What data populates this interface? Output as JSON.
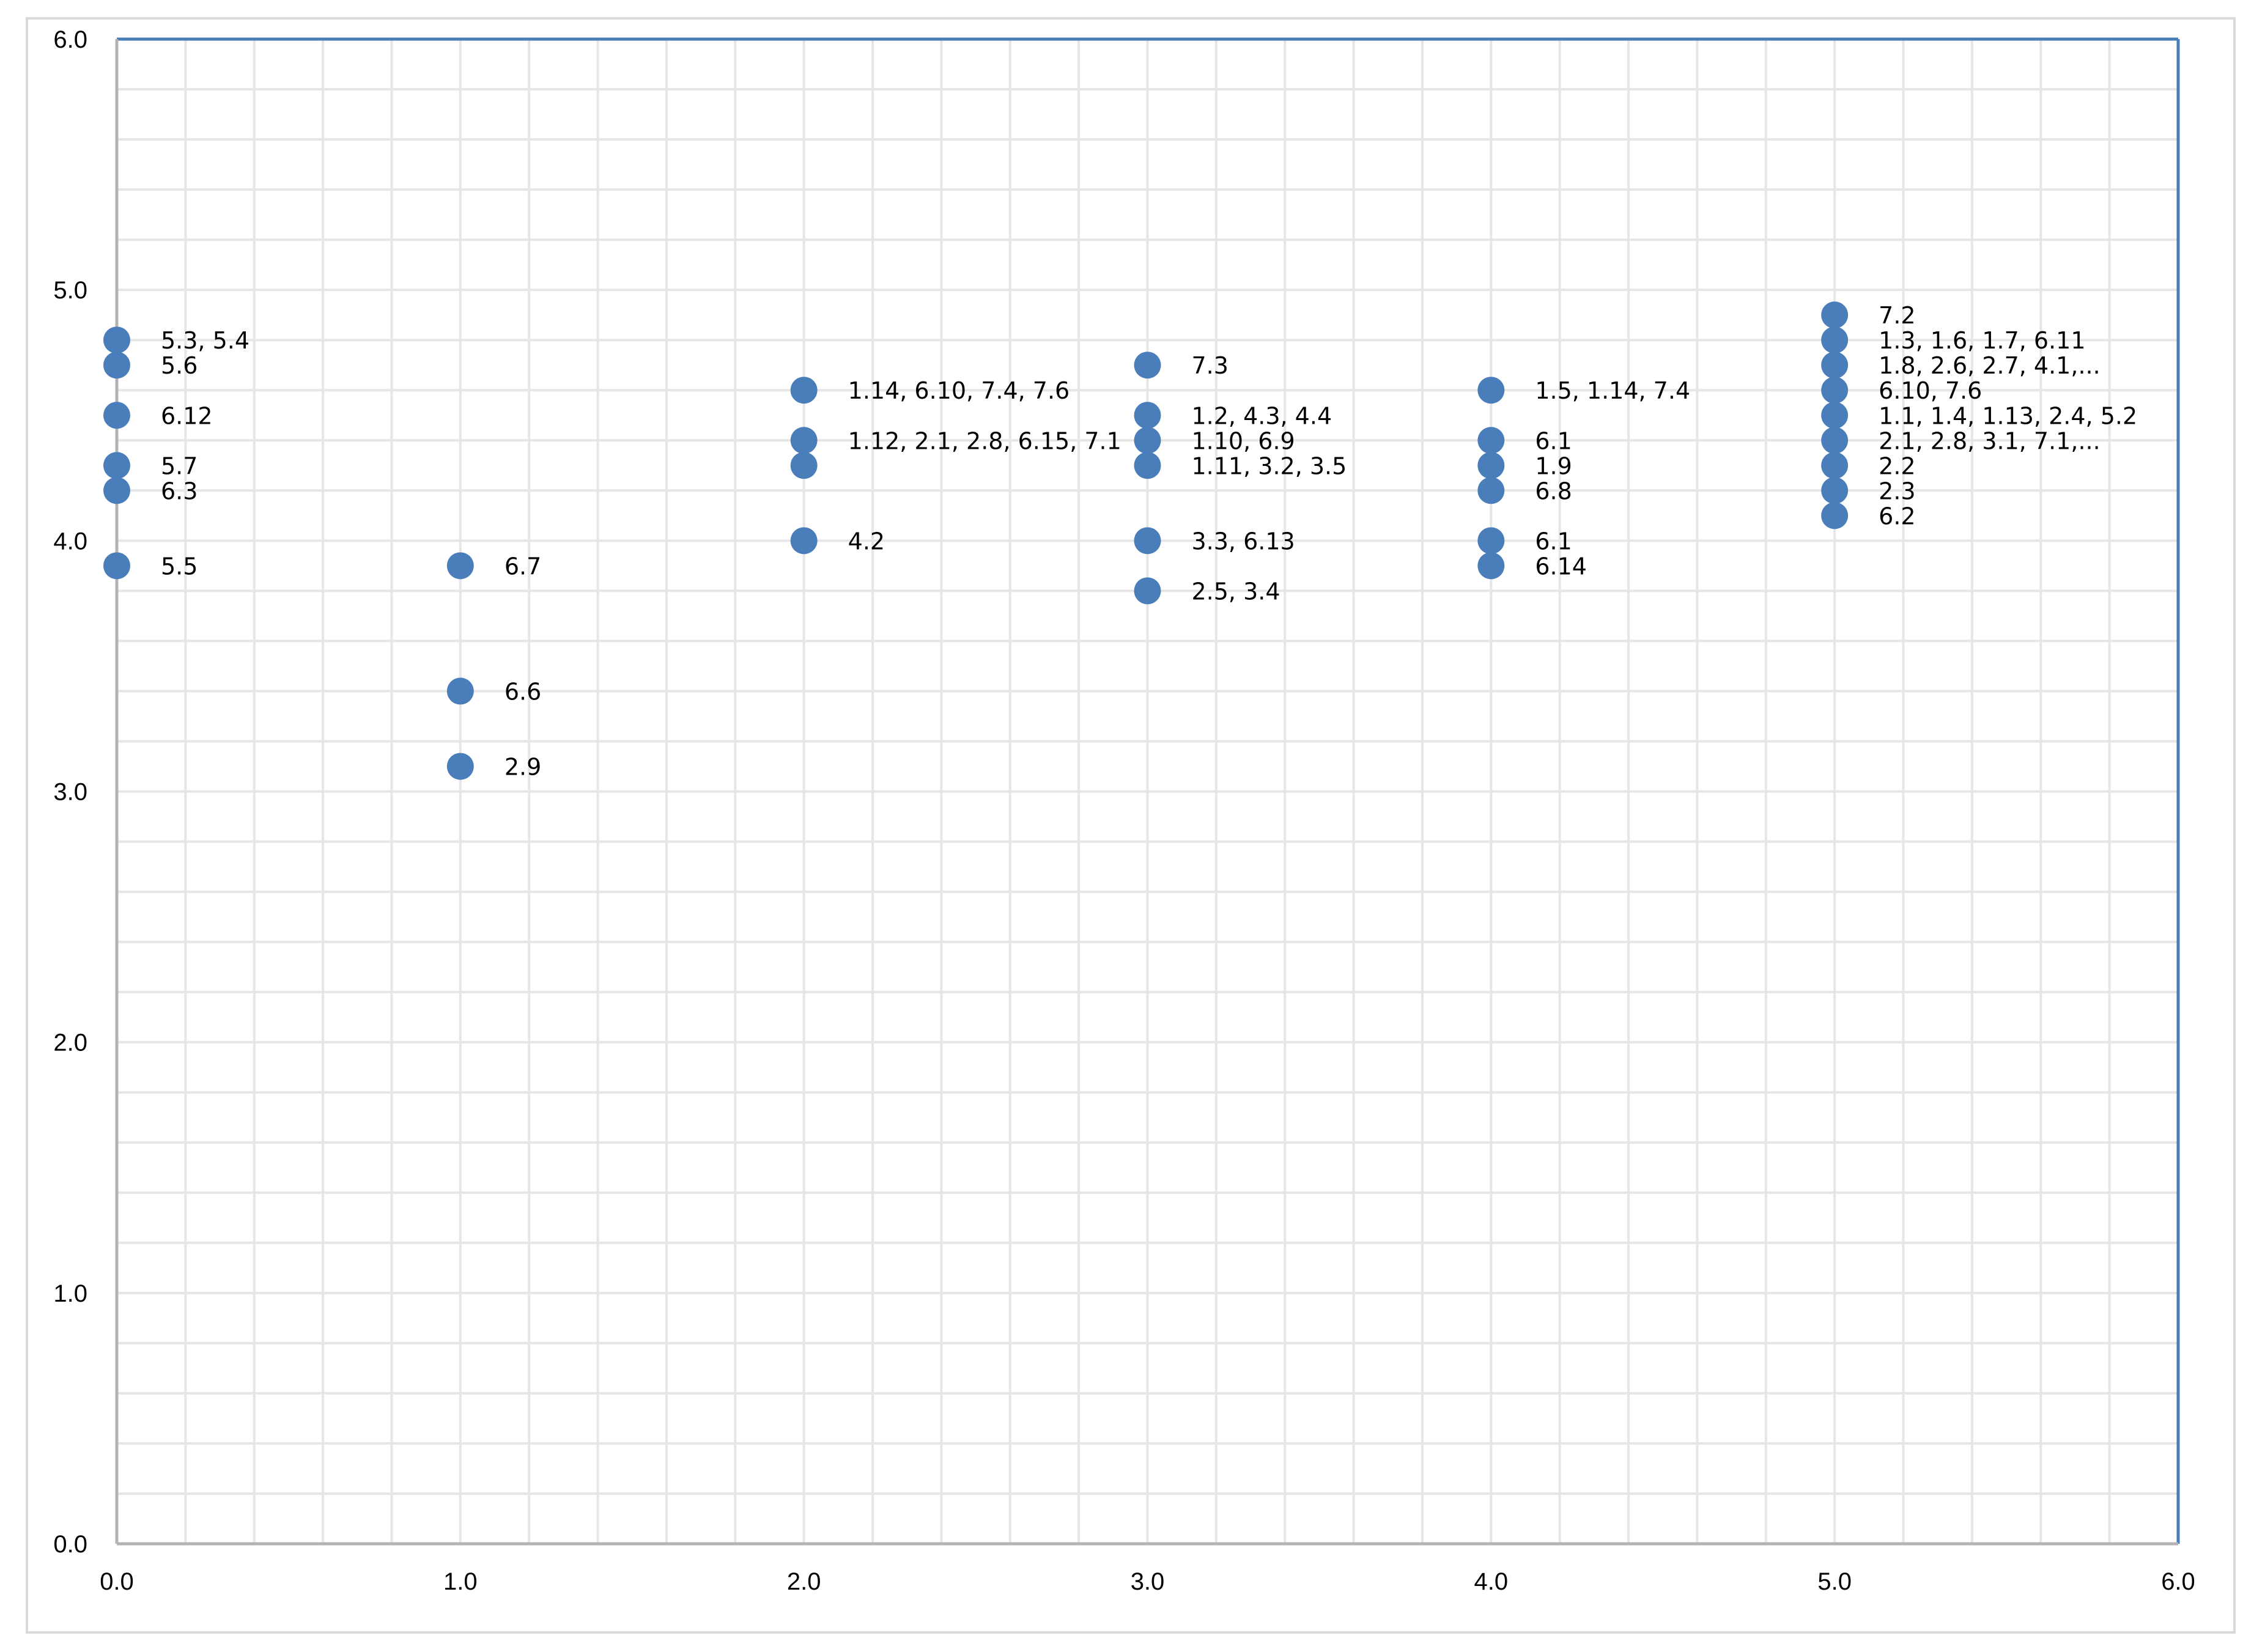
{
  "chart_data": {
    "type": "scatter",
    "title": "",
    "xlabel": "",
    "ylabel": "",
    "xlim": [
      0,
      6
    ],
    "ylim": [
      0,
      6
    ],
    "x_ticks": [
      "0.0",
      "1.0",
      "2.0",
      "3.0",
      "4.0",
      "5.0",
      "6.0"
    ],
    "y_ticks": [
      "0.0",
      "1.0",
      "2.0",
      "3.0",
      "4.0",
      "5.0",
      "6.0"
    ],
    "grid": true,
    "legend": "none",
    "colors": {
      "marker": "#4a7ebb",
      "frame": "#4a7ebb",
      "axis": "#b3b3b3",
      "grid": "#e6e6e6",
      "outer_border": "#d9d9d9"
    },
    "points": [
      {
        "x": 0,
        "y": 4.8,
        "label": "5.3, 5.4"
      },
      {
        "x": 0,
        "y": 4.7,
        "label": "5.6"
      },
      {
        "x": 0,
        "y": 4.5,
        "label": "6.12"
      },
      {
        "x": 0,
        "y": 4.3,
        "label": "5.7"
      },
      {
        "x": 0,
        "y": 4.2,
        "label": "6.3"
      },
      {
        "x": 0,
        "y": 3.9,
        "label": "5.5"
      },
      {
        "x": 1,
        "y": 3.9,
        "label": "6.7"
      },
      {
        "x": 1,
        "y": 3.4,
        "label": "6.6"
      },
      {
        "x": 1,
        "y": 3.1,
        "label": "2.9"
      },
      {
        "x": 2,
        "y": 4.6,
        "label": "1.14, 6.10, 7.4, 7.6"
      },
      {
        "x": 2,
        "y": 4.4,
        "label": "1.12, 2.1, 2.8, 6.15, 7.1"
      },
      {
        "x": 2,
        "y": 4.3,
        "label": ""
      },
      {
        "x": 2,
        "y": 4.0,
        "label": "4.2"
      },
      {
        "x": 3,
        "y": 4.7,
        "label": "7.3"
      },
      {
        "x": 3,
        "y": 4.5,
        "label": "1.2, 4.3, 4.4"
      },
      {
        "x": 3,
        "y": 4.4,
        "label": "1.10, 6.9"
      },
      {
        "x": 3,
        "y": 4.3,
        "label": "1.11, 3.2, 3.5"
      },
      {
        "x": 3,
        "y": 4.0,
        "label": "3.3, 6.13"
      },
      {
        "x": 3,
        "y": 3.8,
        "label": "2.5, 3.4"
      },
      {
        "x": 4,
        "y": 4.6,
        "label": "1.5, 1.14, 7.4"
      },
      {
        "x": 4,
        "y": 4.4,
        "label": "6.1"
      },
      {
        "x": 4,
        "y": 4.3,
        "label": "1.9"
      },
      {
        "x": 4,
        "y": 4.2,
        "label": "6.8"
      },
      {
        "x": 4,
        "y": 4.0,
        "label": "6.1"
      },
      {
        "x": 4,
        "y": 3.9,
        "label": "6.14"
      },
      {
        "x": 5,
        "y": 4.9,
        "label": "7.2"
      },
      {
        "x": 5,
        "y": 4.8,
        "label": "1.3, 1.6, 1.7, 6.11"
      },
      {
        "x": 5,
        "y": 4.7,
        "label": "1.8, 2.6, 2.7, 4.1,..."
      },
      {
        "x": 5,
        "y": 4.6,
        "label": "6.10, 7.6"
      },
      {
        "x": 5,
        "y": 4.5,
        "label": "1.1, 1.4, 1.13, 2.4, 5.2"
      },
      {
        "x": 5,
        "y": 4.4,
        "label": "2.1, 2.8, 3.1, 7.1,..."
      },
      {
        "x": 5,
        "y": 4.3,
        "label": "2.2"
      },
      {
        "x": 5,
        "y": 4.2,
        "label": "2.3"
      },
      {
        "x": 5,
        "y": 4.1,
        "label": "6.2"
      }
    ]
  }
}
